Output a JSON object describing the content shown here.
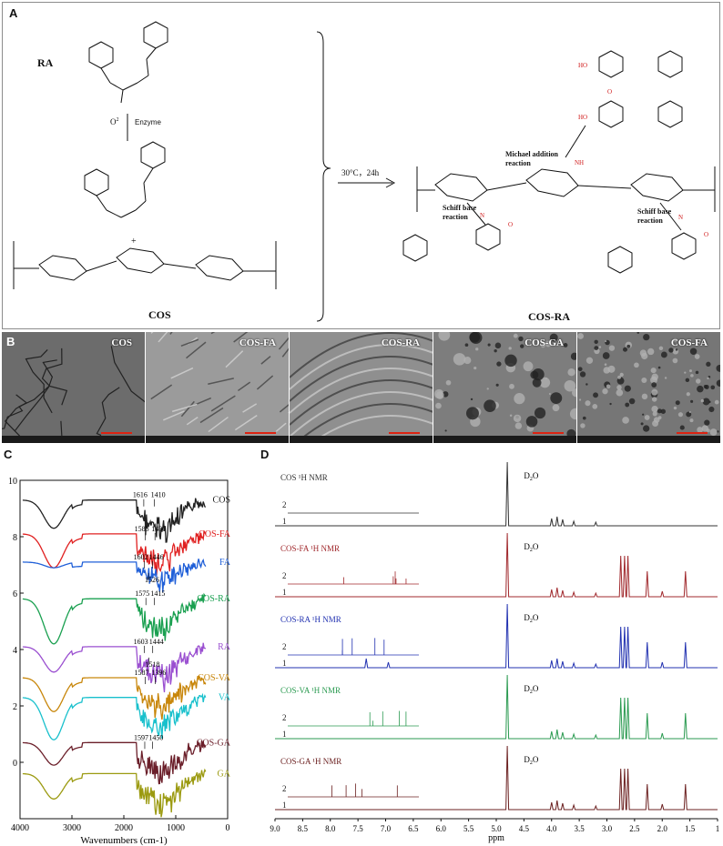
{
  "panel_a": {
    "label": "A",
    "ra_label": "RA",
    "reagent_o2": "O",
    "reagent_o2_sup": "2",
    "enzyme": "Enzyme",
    "plus": "+",
    "cos_label": "COS",
    "conditions": "30°C，24h",
    "product_label": "COS-RA",
    "michael": "Michael addition\nreaction",
    "schiff_left": "Schiff base\nreaction",
    "schiff_right": "Schiff base\nreaction",
    "n": "n"
  },
  "panel_b": {
    "label": "B",
    "images": [
      {
        "label": "COS",
        "texture": "cracked"
      },
      {
        "label": "COS-FA",
        "texture": "streaked"
      },
      {
        "label": "COS-RA",
        "texture": "folded"
      },
      {
        "label": "COS-GA",
        "texture": "porous"
      },
      {
        "label": "COS-FA",
        "texture": "granular"
      }
    ]
  },
  "panel_c": {
    "label": "C",
    "chart_data": {
      "type": "line",
      "title": "",
      "xlabel": "Wavenumbers (cm-1)",
      "xlim": [
        4000,
        0
      ],
      "ylim": [
        -2,
        10
      ],
      "x_ticks": [
        "4000",
        "3000",
        "2000",
        "1000",
        "0"
      ],
      "y_ticks": [
        "10",
        "8",
        "6",
        "4",
        "2",
        "0"
      ],
      "series": [
        {
          "name": "COS",
          "color": "#222222",
          "base": 9.3,
          "dip": 1.0,
          "peaks": [
            "1616",
            "1410"
          ]
        },
        {
          "name": "COS-FA",
          "color": "#e02020",
          "base": 8.1,
          "dip": 1.2,
          "peaks": [
            "1585",
            "1400"
          ]
        },
        {
          "name": "FA",
          "color": "#1f5fd8",
          "base": 7.1,
          "dip": 0.2,
          "peaks": [
            "1602",
            "1446",
            "1526"
          ]
        },
        {
          "name": "COS-RA",
          "color": "#1aa050",
          "base": 5.8,
          "dip": 1.6,
          "peaks": [
            "1575",
            "1415"
          ]
        },
        {
          "name": "RA",
          "color": "#9a4fd0",
          "base": 4.1,
          "dip": 0.9,
          "peaks": [
            "1603",
            "1444",
            "1518"
          ]
        },
        {
          "name": "COS-VA",
          "color": "#c8860a",
          "base": 3.0,
          "dip": 1.2,
          "peaks": [
            "1587",
            "1396"
          ]
        },
        {
          "name": "VA",
          "color": "#18c0cc",
          "base": 2.3,
          "dip": 1.5,
          "peaks": []
        },
        {
          "name": "COS-GA",
          "color": "#6b1f2a",
          "base": 0.7,
          "dip": 0.8,
          "peaks": [
            "1597",
            "1450"
          ]
        },
        {
          "name": "GA",
          "color": "#9b9a10",
          "base": -0.4,
          "dip": 0.9,
          "peaks": []
        }
      ]
    }
  },
  "panel_d": {
    "label": "D",
    "chart_data": {
      "type": "line",
      "title": "",
      "xlabel": "ppm",
      "xlim": [
        9.0,
        1.0
      ],
      "x_ticks": [
        "9.0",
        "8.5",
        "8.0",
        "7.5",
        "7.0",
        "6.5",
        "6.0",
        "5.5",
        "5.0",
        "4.5",
        "4.0",
        "3.5",
        "3.0",
        "2.5",
        "2.0",
        "1.5",
        "1"
      ],
      "solvent_label": "D",
      "solvent_sub": "2",
      "solvent_suffix": "O",
      "spectra": [
        {
          "name": "COS ¹H NMR",
          "color": "#333333",
          "inset_labels": [
            "2",
            "1"
          ]
        },
        {
          "name": "COS-FA ¹H NMR",
          "color": "#a0282c",
          "inset_labels": [
            "2",
            "1"
          ]
        },
        {
          "name": "COS-RA ¹H NMR",
          "color": "#2030b0",
          "inset_labels": [
            "2",
            "1"
          ]
        },
        {
          "name": "COS-VA ¹H NMR",
          "color": "#2a9a50",
          "inset_labels": [
            "2",
            "1"
          ]
        },
        {
          "name": "COS-GA ¹H NMR",
          "color": "#6b2020",
          "inset_labels": [
            "2",
            "1"
          ]
        }
      ]
    }
  }
}
